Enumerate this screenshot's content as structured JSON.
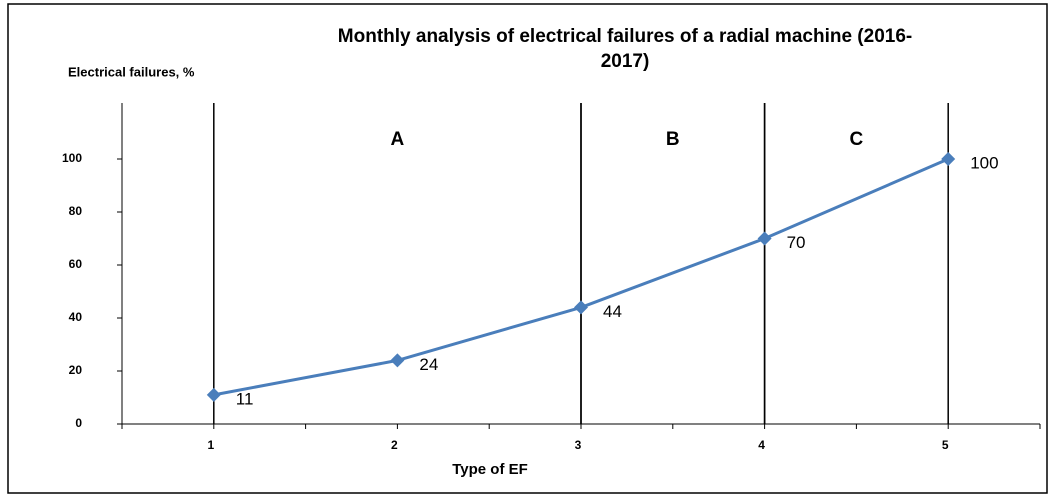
{
  "chart_data": {
    "type": "line",
    "title": "Monthly analysis of electrical failures of a radial machine (2016-2017)",
    "y_label": "Electrical failures, %",
    "x_label": "Type of EF",
    "x": [
      1,
      2,
      3,
      4,
      5
    ],
    "series": [
      {
        "name": "Electrical failures",
        "color": "#4a7ebb",
        "values": [
          11,
          24,
          44,
          70,
          100
        ]
      }
    ],
    "xlim": [
      0.5,
      5.5
    ],
    "xticks": [
      1,
      2,
      3,
      4,
      5
    ],
    "ylim": [
      0,
      120
    ],
    "yticks": [
      0,
      20,
      40,
      60,
      80,
      100
    ],
    "grid": false,
    "regions": [
      {
        "label": "A",
        "from": 1,
        "to": 3
      },
      {
        "label": "B",
        "from": 3,
        "to": 4
      },
      {
        "label": "C",
        "from": 4,
        "to": 5
      }
    ]
  }
}
